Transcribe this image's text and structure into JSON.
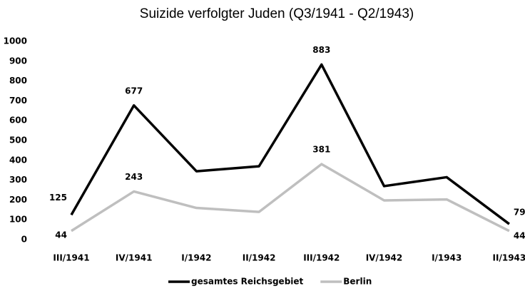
{
  "chart_data": {
    "type": "line",
    "title": "Suizide verfolgter Juden (Q3/1941 - Q2/1943)",
    "categories": [
      "III/1941",
      "IV/1941",
      "I/1942",
      "II/1942",
      "III/1942",
      "IV/1942",
      "I/1943",
      "II/1943"
    ],
    "series": [
      {
        "name": "gesamtes Reichsgebiet",
        "color": "#000000",
        "values": [
          125,
          677,
          345,
          370,
          883,
          270,
          315,
          79
        ],
        "value_labels": [
          "125",
          "677",
          null,
          null,
          "883",
          null,
          null,
          "79"
        ]
      },
      {
        "name": "Berlin",
        "color": "#bfbfbf",
        "values": [
          44,
          243,
          160,
          140,
          381,
          198,
          203,
          44
        ],
        "value_labels": [
          "44",
          "243",
          null,
          null,
          "381",
          null,
          null,
          "44"
        ]
      }
    ],
    "ylim": [
      0,
      1000
    ],
    "yticks": [
      0,
      100,
      200,
      300,
      400,
      500,
      600,
      700,
      800,
      900,
      1000
    ],
    "grid": false,
    "legend": "bottom"
  }
}
